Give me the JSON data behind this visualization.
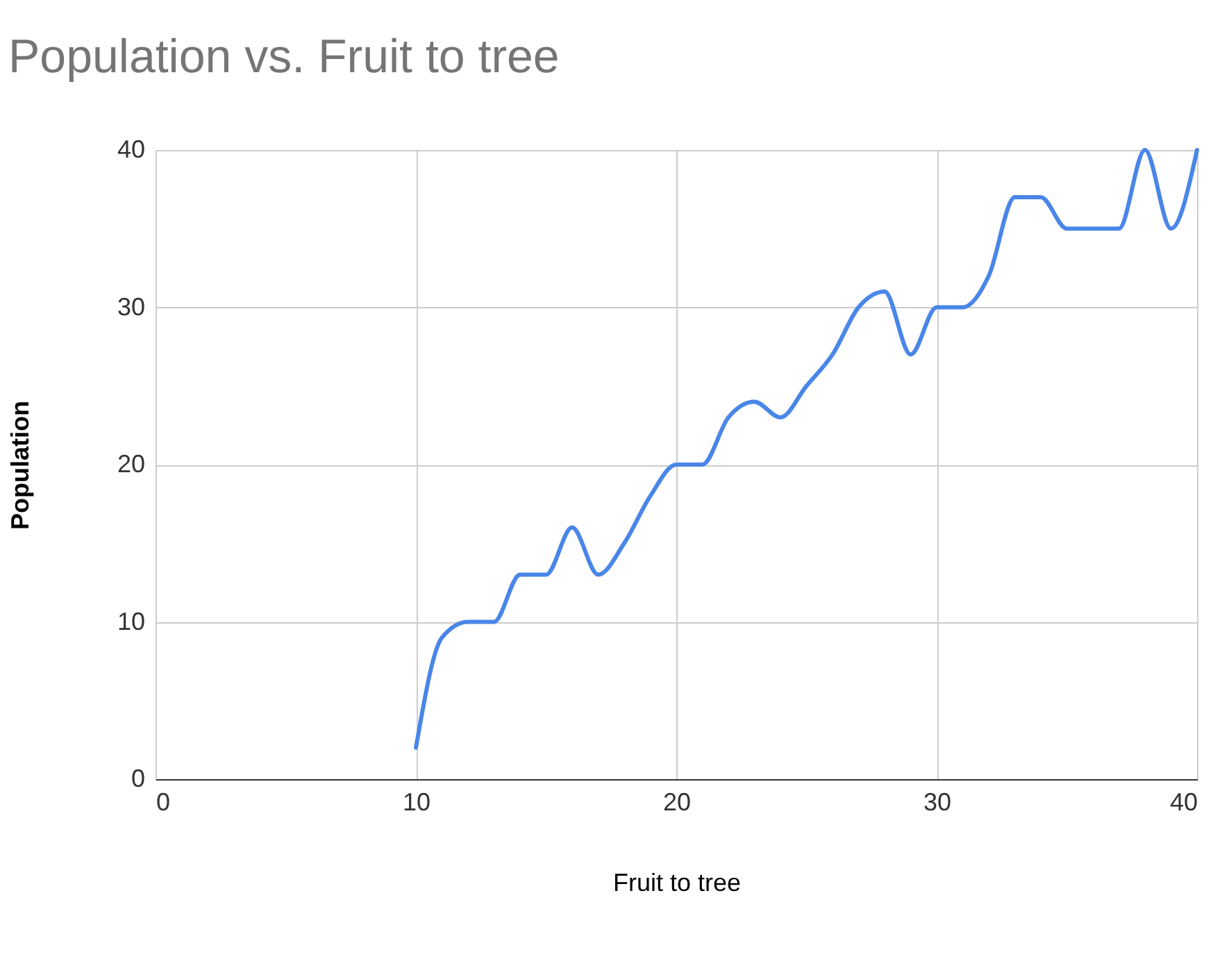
{
  "chart_data": {
    "type": "line",
    "title": "Population vs. Fruit to tree",
    "xlabel": "Fruit to tree",
    "ylabel": "Population",
    "x": [
      10,
      11,
      12,
      13,
      14,
      15,
      16,
      17,
      18,
      19,
      20,
      21,
      22,
      23,
      24,
      25,
      26,
      27,
      28,
      29,
      30,
      31,
      32,
      33,
      34,
      35,
      36,
      37,
      38,
      39,
      40
    ],
    "series": [
      {
        "color": "#4a86e8",
        "values": [
          2,
          9,
          10,
          10,
          13,
          13,
          16,
          13,
          15,
          18,
          20,
          20,
          23,
          24,
          23,
          25,
          27,
          30,
          31,
          27,
          30,
          30,
          32,
          37,
          37,
          35,
          35,
          35,
          40,
          35,
          40
        ]
      }
    ],
    "xlim": [
      0,
      40
    ],
    "xticks": [
      0,
      10,
      20,
      30,
      40
    ],
    "ylim": [
      0,
      40
    ],
    "yticks": [
      0,
      10,
      20,
      30,
      40
    ],
    "grid": true,
    "marker": "none",
    "line_style": "solid"
  }
}
